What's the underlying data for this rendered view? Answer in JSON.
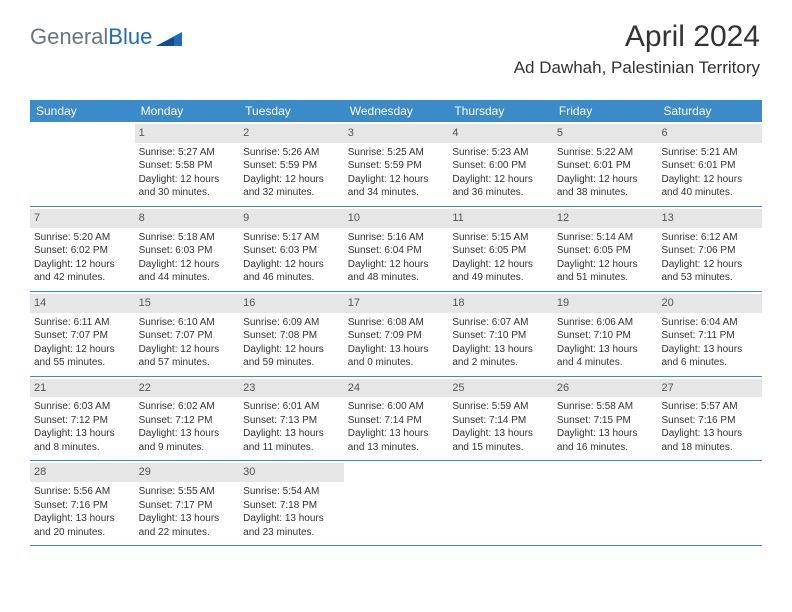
{
  "brand": {
    "part1": "General",
    "part2": "Blue"
  },
  "title": "April 2024",
  "location": "Ad Dawhah, Palestinian Territory",
  "colors": {
    "header_bg": "#3b8bc9",
    "header_text": "#ffffff",
    "daynum_bg": "#e6e6e6",
    "rule": "#3b8bc9",
    "brand_gray": "#6c757d",
    "brand_blue": "#1e6bb8"
  },
  "day_headers": [
    "Sunday",
    "Monday",
    "Tuesday",
    "Wednesday",
    "Thursday",
    "Friday",
    "Saturday"
  ],
  "weeks": [
    [
      {
        "empty": true
      },
      {
        "n": "1",
        "sr": "Sunrise: 5:27 AM",
        "ss": "Sunset: 5:58 PM",
        "d1": "Daylight: 12 hours",
        "d2": "and 30 minutes."
      },
      {
        "n": "2",
        "sr": "Sunrise: 5:26 AM",
        "ss": "Sunset: 5:59 PM",
        "d1": "Daylight: 12 hours",
        "d2": "and 32 minutes."
      },
      {
        "n": "3",
        "sr": "Sunrise: 5:25 AM",
        "ss": "Sunset: 5:59 PM",
        "d1": "Daylight: 12 hours",
        "d2": "and 34 minutes."
      },
      {
        "n": "4",
        "sr": "Sunrise: 5:23 AM",
        "ss": "Sunset: 6:00 PM",
        "d1": "Daylight: 12 hours",
        "d2": "and 36 minutes."
      },
      {
        "n": "5",
        "sr": "Sunrise: 5:22 AM",
        "ss": "Sunset: 6:01 PM",
        "d1": "Daylight: 12 hours",
        "d2": "and 38 minutes."
      },
      {
        "n": "6",
        "sr": "Sunrise: 5:21 AM",
        "ss": "Sunset: 6:01 PM",
        "d1": "Daylight: 12 hours",
        "d2": "and 40 minutes."
      }
    ],
    [
      {
        "n": "7",
        "sr": "Sunrise: 5:20 AM",
        "ss": "Sunset: 6:02 PM",
        "d1": "Daylight: 12 hours",
        "d2": "and 42 minutes."
      },
      {
        "n": "8",
        "sr": "Sunrise: 5:18 AM",
        "ss": "Sunset: 6:03 PM",
        "d1": "Daylight: 12 hours",
        "d2": "and 44 minutes."
      },
      {
        "n": "9",
        "sr": "Sunrise: 5:17 AM",
        "ss": "Sunset: 6:03 PM",
        "d1": "Daylight: 12 hours",
        "d2": "and 46 minutes."
      },
      {
        "n": "10",
        "sr": "Sunrise: 5:16 AM",
        "ss": "Sunset: 6:04 PM",
        "d1": "Daylight: 12 hours",
        "d2": "and 48 minutes."
      },
      {
        "n": "11",
        "sr": "Sunrise: 5:15 AM",
        "ss": "Sunset: 6:05 PM",
        "d1": "Daylight: 12 hours",
        "d2": "and 49 minutes."
      },
      {
        "n": "12",
        "sr": "Sunrise: 5:14 AM",
        "ss": "Sunset: 6:05 PM",
        "d1": "Daylight: 12 hours",
        "d2": "and 51 minutes."
      },
      {
        "n": "13",
        "sr": "Sunrise: 6:12 AM",
        "ss": "Sunset: 7:06 PM",
        "d1": "Daylight: 12 hours",
        "d2": "and 53 minutes."
      }
    ],
    [
      {
        "n": "14",
        "sr": "Sunrise: 6:11 AM",
        "ss": "Sunset: 7:07 PM",
        "d1": "Daylight: 12 hours",
        "d2": "and 55 minutes."
      },
      {
        "n": "15",
        "sr": "Sunrise: 6:10 AM",
        "ss": "Sunset: 7:07 PM",
        "d1": "Daylight: 12 hours",
        "d2": "and 57 minutes."
      },
      {
        "n": "16",
        "sr": "Sunrise: 6:09 AM",
        "ss": "Sunset: 7:08 PM",
        "d1": "Daylight: 12 hours",
        "d2": "and 59 minutes."
      },
      {
        "n": "17",
        "sr": "Sunrise: 6:08 AM",
        "ss": "Sunset: 7:09 PM",
        "d1": "Daylight: 13 hours",
        "d2": "and 0 minutes."
      },
      {
        "n": "18",
        "sr": "Sunrise: 6:07 AM",
        "ss": "Sunset: 7:10 PM",
        "d1": "Daylight: 13 hours",
        "d2": "and 2 minutes."
      },
      {
        "n": "19",
        "sr": "Sunrise: 6:06 AM",
        "ss": "Sunset: 7:10 PM",
        "d1": "Daylight: 13 hours",
        "d2": "and 4 minutes."
      },
      {
        "n": "20",
        "sr": "Sunrise: 6:04 AM",
        "ss": "Sunset: 7:11 PM",
        "d1": "Daylight: 13 hours",
        "d2": "and 6 minutes."
      }
    ],
    [
      {
        "n": "21",
        "sr": "Sunrise: 6:03 AM",
        "ss": "Sunset: 7:12 PM",
        "d1": "Daylight: 13 hours",
        "d2": "and 8 minutes."
      },
      {
        "n": "22",
        "sr": "Sunrise: 6:02 AM",
        "ss": "Sunset: 7:12 PM",
        "d1": "Daylight: 13 hours",
        "d2": "and 9 minutes."
      },
      {
        "n": "23",
        "sr": "Sunrise: 6:01 AM",
        "ss": "Sunset: 7:13 PM",
        "d1": "Daylight: 13 hours",
        "d2": "and 11 minutes."
      },
      {
        "n": "24",
        "sr": "Sunrise: 6:00 AM",
        "ss": "Sunset: 7:14 PM",
        "d1": "Daylight: 13 hours",
        "d2": "and 13 minutes."
      },
      {
        "n": "25",
        "sr": "Sunrise: 5:59 AM",
        "ss": "Sunset: 7:14 PM",
        "d1": "Daylight: 13 hours",
        "d2": "and 15 minutes."
      },
      {
        "n": "26",
        "sr": "Sunrise: 5:58 AM",
        "ss": "Sunset: 7:15 PM",
        "d1": "Daylight: 13 hours",
        "d2": "and 16 minutes."
      },
      {
        "n": "27",
        "sr": "Sunrise: 5:57 AM",
        "ss": "Sunset: 7:16 PM",
        "d1": "Daylight: 13 hours",
        "d2": "and 18 minutes."
      }
    ],
    [
      {
        "n": "28",
        "sr": "Sunrise: 5:56 AM",
        "ss": "Sunset: 7:16 PM",
        "d1": "Daylight: 13 hours",
        "d2": "and 20 minutes."
      },
      {
        "n": "29",
        "sr": "Sunrise: 5:55 AM",
        "ss": "Sunset: 7:17 PM",
        "d1": "Daylight: 13 hours",
        "d2": "and 22 minutes."
      },
      {
        "n": "30",
        "sr": "Sunrise: 5:54 AM",
        "ss": "Sunset: 7:18 PM",
        "d1": "Daylight: 13 hours",
        "d2": "and 23 minutes."
      },
      {
        "empty": true
      },
      {
        "empty": true
      },
      {
        "empty": true
      },
      {
        "empty": true
      }
    ]
  ]
}
